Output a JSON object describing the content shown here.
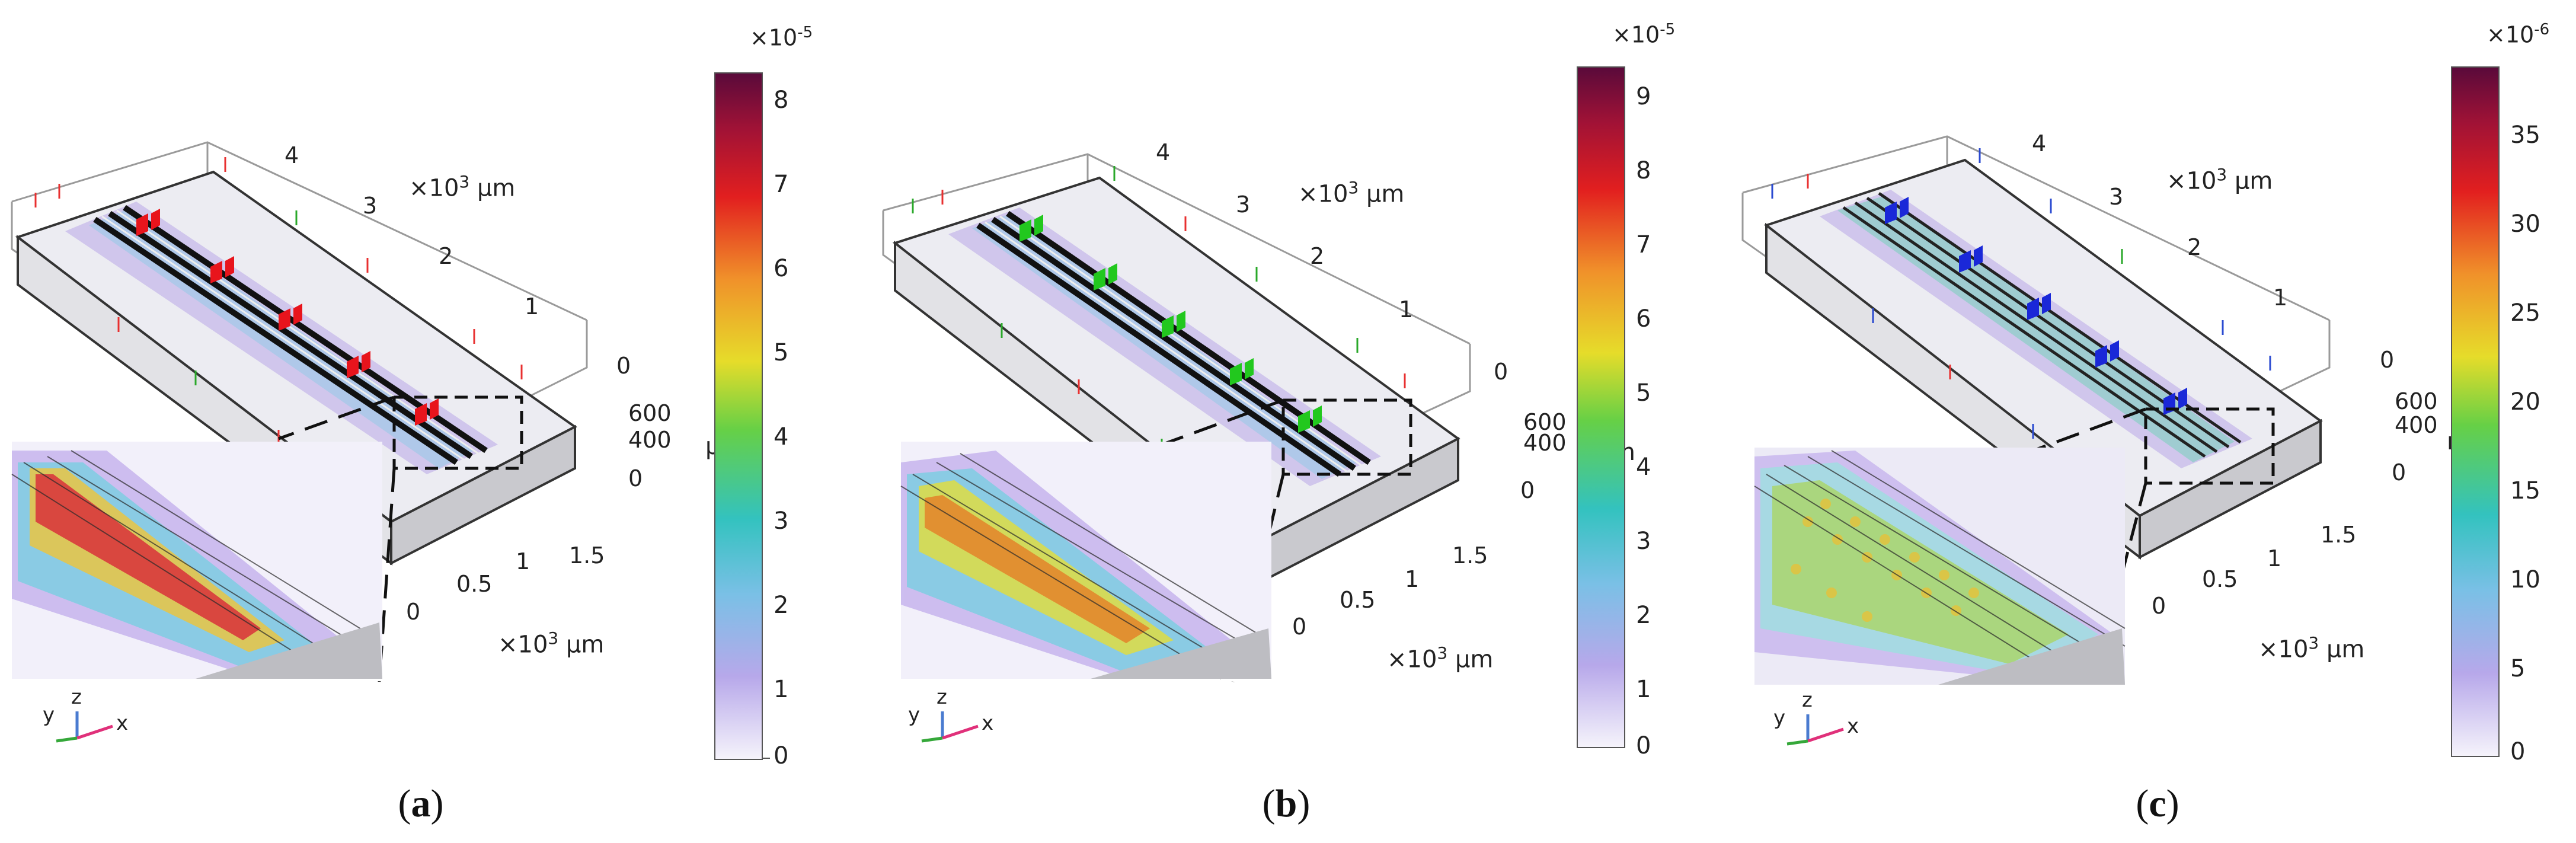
{
  "panels": [
    {
      "caption": "a",
      "colorbar": {
        "exponent_base": "×10",
        "exponent_power": "-5",
        "ticks": [
          "8",
          "7",
          "6",
          "5",
          "4",
          "3",
          "2",
          "1",
          "0"
        ],
        "partial_label": "μ"
      },
      "axis_unit_top": "×10",
      "axis_unit_top_power": "3",
      "axis_unit_top_suffix": " μm",
      "axis_unit_bottom": "×10",
      "axis_unit_bottom_power": "3",
      "axis_unit_bottom_suffix": " μm",
      "x_ticks": [
        "4",
        "3",
        "2",
        "1",
        "0"
      ],
      "z_ticks": [
        "600",
        "400",
        "0"
      ],
      "y_ticks": [
        "1.5",
        "1",
        "0.5",
        "0"
      ],
      "marker_color": "#e8141c",
      "triad": {
        "y": "y",
        "z": "z",
        "x": "x"
      }
    },
    {
      "caption": "b",
      "colorbar": {
        "exponent_base": "×10",
        "exponent_power": "-5",
        "ticks": [
          "9",
          "8",
          "7",
          "6",
          "5",
          "4",
          "3",
          "2",
          "1",
          "0"
        ],
        "partial_label": "m"
      },
      "axis_unit_top": "×10",
      "axis_unit_top_power": "3",
      "axis_unit_top_suffix": " μm",
      "axis_unit_bottom": "×10",
      "axis_unit_bottom_power": "3",
      "axis_unit_bottom_suffix": " μm",
      "x_ticks": [
        "4",
        "3",
        "2",
        "1",
        "0"
      ],
      "z_ticks": [
        "600",
        "400",
        "0"
      ],
      "y_ticks": [
        "1.5",
        "1",
        "0.5",
        "0"
      ],
      "marker_color": "#22c81e",
      "triad": {
        "y": "y",
        "z": "z",
        "x": "x"
      }
    },
    {
      "caption": "c",
      "colorbar": {
        "exponent_base": "×10",
        "exponent_power": "-6",
        "ticks": [
          "35",
          "30",
          "25",
          "20",
          "15",
          "10",
          "5",
          "0"
        ],
        "partial_label": "n"
      },
      "axis_unit_top": "×10",
      "axis_unit_top_power": "3",
      "axis_unit_top_suffix": " μm",
      "axis_unit_bottom": "×10",
      "axis_unit_bottom_power": "3",
      "axis_unit_bottom_suffix": " μm",
      "x_ticks": [
        "4",
        "3",
        "2",
        "1",
        "0"
      ],
      "z_ticks": [
        "600",
        "400",
        "0"
      ],
      "y_ticks": [
        "1.5",
        "1",
        "0.5",
        "0"
      ],
      "marker_color": "#1a28d8",
      "triad": {
        "y": "y",
        "z": "z",
        "x": "x"
      }
    }
  ]
}
